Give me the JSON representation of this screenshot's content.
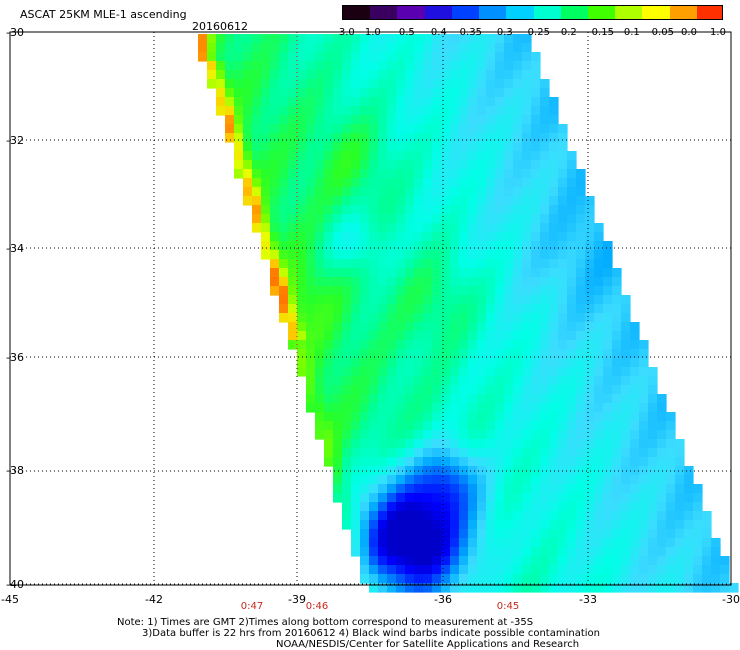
{
  "header": {
    "title": "ASCAT 25KM MLE-1 ascending",
    "date": "20160612"
  },
  "map": {
    "lat_ticks": [
      "-30",
      "-32",
      "-34",
      "-36",
      "-38",
      "-40"
    ],
    "lon_ticks": [
      "-45",
      "-42",
      "-39",
      "-36",
      "-33",
      "-30"
    ],
    "pass_times": [
      "0:47",
      "0:46",
      "0:45"
    ],
    "lat_range": [
      -40,
      -30
    ],
    "lon_range": [
      -45,
      -30
    ],
    "grid": "dotted"
  },
  "colorbar": {
    "labels": [
      "-3.0",
      "-1.0",
      "-0.5",
      "-0.4",
      "-0.35",
      "-0.3",
      "-0.25",
      "-0.2",
      "-0.15",
      "-0.1",
      "-0.05",
      "0.0",
      "1.0"
    ],
    "colors": [
      "#1a0010",
      "#3a0060",
      "#5a00b0",
      "#2010e0",
      "#0040ff",
      "#0090ff",
      "#00d0ff",
      "#00ffd0",
      "#00ff60",
      "#40ff00",
      "#b0ff00",
      "#ffff00",
      "#ffa000",
      "#ff3000"
    ]
  },
  "notes": {
    "line1": "Note: 1) Times are GMT 2)Times along bottom correspond to measurement at -35S",
    "line2": "3)Data buffer is 22 hrs from 20160612 4) Black wind barbs indicate possible contamination",
    "line3": "NOAA/NESDIS/Center for Satellite Applications and Research"
  }
}
